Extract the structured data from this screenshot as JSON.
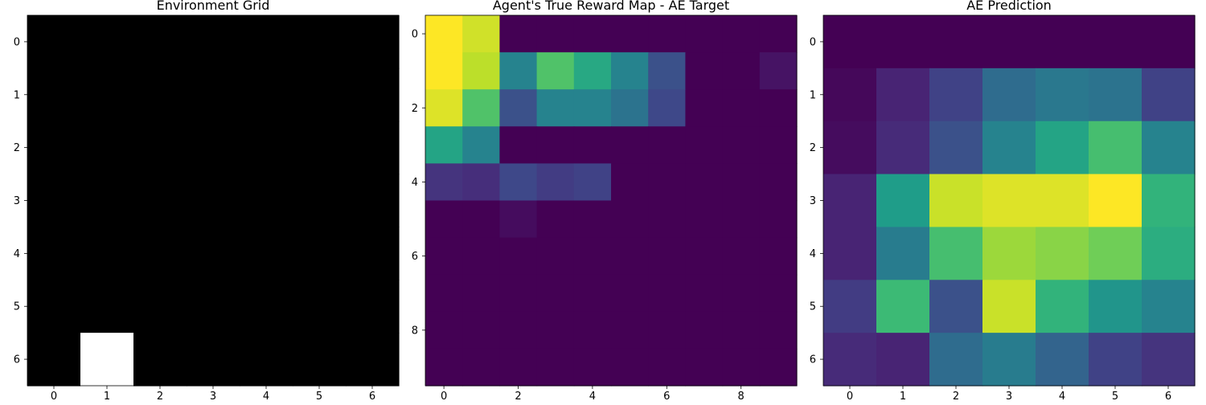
{
  "colors": {
    "viridis": [
      "#440154",
      "#482878",
      "#3e4989",
      "#31688e",
      "#26828e",
      "#1f9e89",
      "#35b779",
      "#6ece58",
      "#b5de2b",
      "#fde725"
    ],
    "binary_on": "#ffffff",
    "binary_off": "#000000",
    "axis": "#000000"
  },
  "chart_data": [
    {
      "type": "heatmap",
      "title": "Environment Grid",
      "colormap": "gray",
      "rows": 7,
      "cols": 7,
      "xticks": [
        0,
        1,
        2,
        3,
        4,
        5,
        6
      ],
      "yticks": [
        0,
        1,
        2,
        3,
        4,
        5,
        6
      ],
      "values": [
        [
          0,
          0,
          0,
          0,
          0,
          0,
          0
        ],
        [
          0,
          0,
          0,
          0,
          0,
          0,
          0
        ],
        [
          0,
          0,
          0,
          0,
          0,
          0,
          0
        ],
        [
          0,
          0,
          0,
          0,
          0,
          0,
          0
        ],
        [
          0,
          0,
          0,
          0,
          0,
          0,
          0
        ],
        [
          0,
          0,
          0,
          0,
          0,
          0,
          0
        ],
        [
          0,
          1,
          0,
          0,
          0,
          0,
          0
        ]
      ]
    },
    {
      "type": "heatmap",
      "title": "Agent's True Reward Map - AE Target",
      "colormap": "viridis",
      "rows": 10,
      "cols": 10,
      "xticks": [
        0,
        2,
        4,
        6,
        8
      ],
      "yticks": [
        0,
        2,
        4,
        6,
        8
      ],
      "values": [
        [
          1.0,
          0.93,
          0,
          0,
          0,
          0,
          0,
          0,
          0,
          0
        ],
        [
          1.0,
          0.9,
          0.45,
          0.72,
          0.6,
          0.45,
          0.25,
          0,
          0,
          0.05
        ],
        [
          0.95,
          0.72,
          0.25,
          0.45,
          0.45,
          0.38,
          0.22,
          0,
          0,
          0
        ],
        [
          0.58,
          0.45,
          0,
          0,
          0,
          0,
          0,
          0,
          0,
          0
        ],
        [
          0.15,
          0.13,
          0.22,
          0.18,
          0.2,
          0,
          0,
          0,
          0,
          0
        ],
        [
          0,
          0,
          0.03,
          0,
          0,
          0,
          0,
          0,
          0,
          0
        ],
        [
          0,
          0,
          0,
          0,
          0,
          0,
          0,
          0,
          0,
          0
        ],
        [
          0,
          0,
          0,
          0,
          0,
          0,
          0,
          0,
          0,
          0
        ],
        [
          0,
          0,
          0,
          0,
          0,
          0,
          0,
          0,
          0,
          0
        ],
        [
          0,
          0,
          0,
          0,
          0,
          0,
          0,
          0,
          0,
          0
        ]
      ]
    },
    {
      "type": "heatmap",
      "title": "AE Prediction",
      "colormap": "viridis",
      "rows": 7,
      "cols": 7,
      "xticks": [
        0,
        1,
        2,
        3,
        4,
        5,
        6
      ],
      "yticks": [
        0,
        1,
        2,
        3,
        4,
        5,
        6
      ],
      "values": [
        [
          0,
          0,
          0,
          0,
          0,
          0,
          0
        ],
        [
          0.02,
          0.1,
          0.2,
          0.35,
          0.4,
          0.38,
          0.2
        ],
        [
          0.03,
          0.12,
          0.25,
          0.45,
          0.58,
          0.7,
          0.45
        ],
        [
          0.1,
          0.55,
          0.92,
          0.95,
          0.95,
          1.0,
          0.65
        ],
        [
          0.1,
          0.42,
          0.7,
          0.85,
          0.82,
          0.78,
          0.62
        ],
        [
          0.18,
          0.68,
          0.25,
          0.92,
          0.65,
          0.52,
          0.45
        ],
        [
          0.12,
          0.1,
          0.35,
          0.42,
          0.32,
          0.2,
          0.15
        ]
      ]
    }
  ]
}
